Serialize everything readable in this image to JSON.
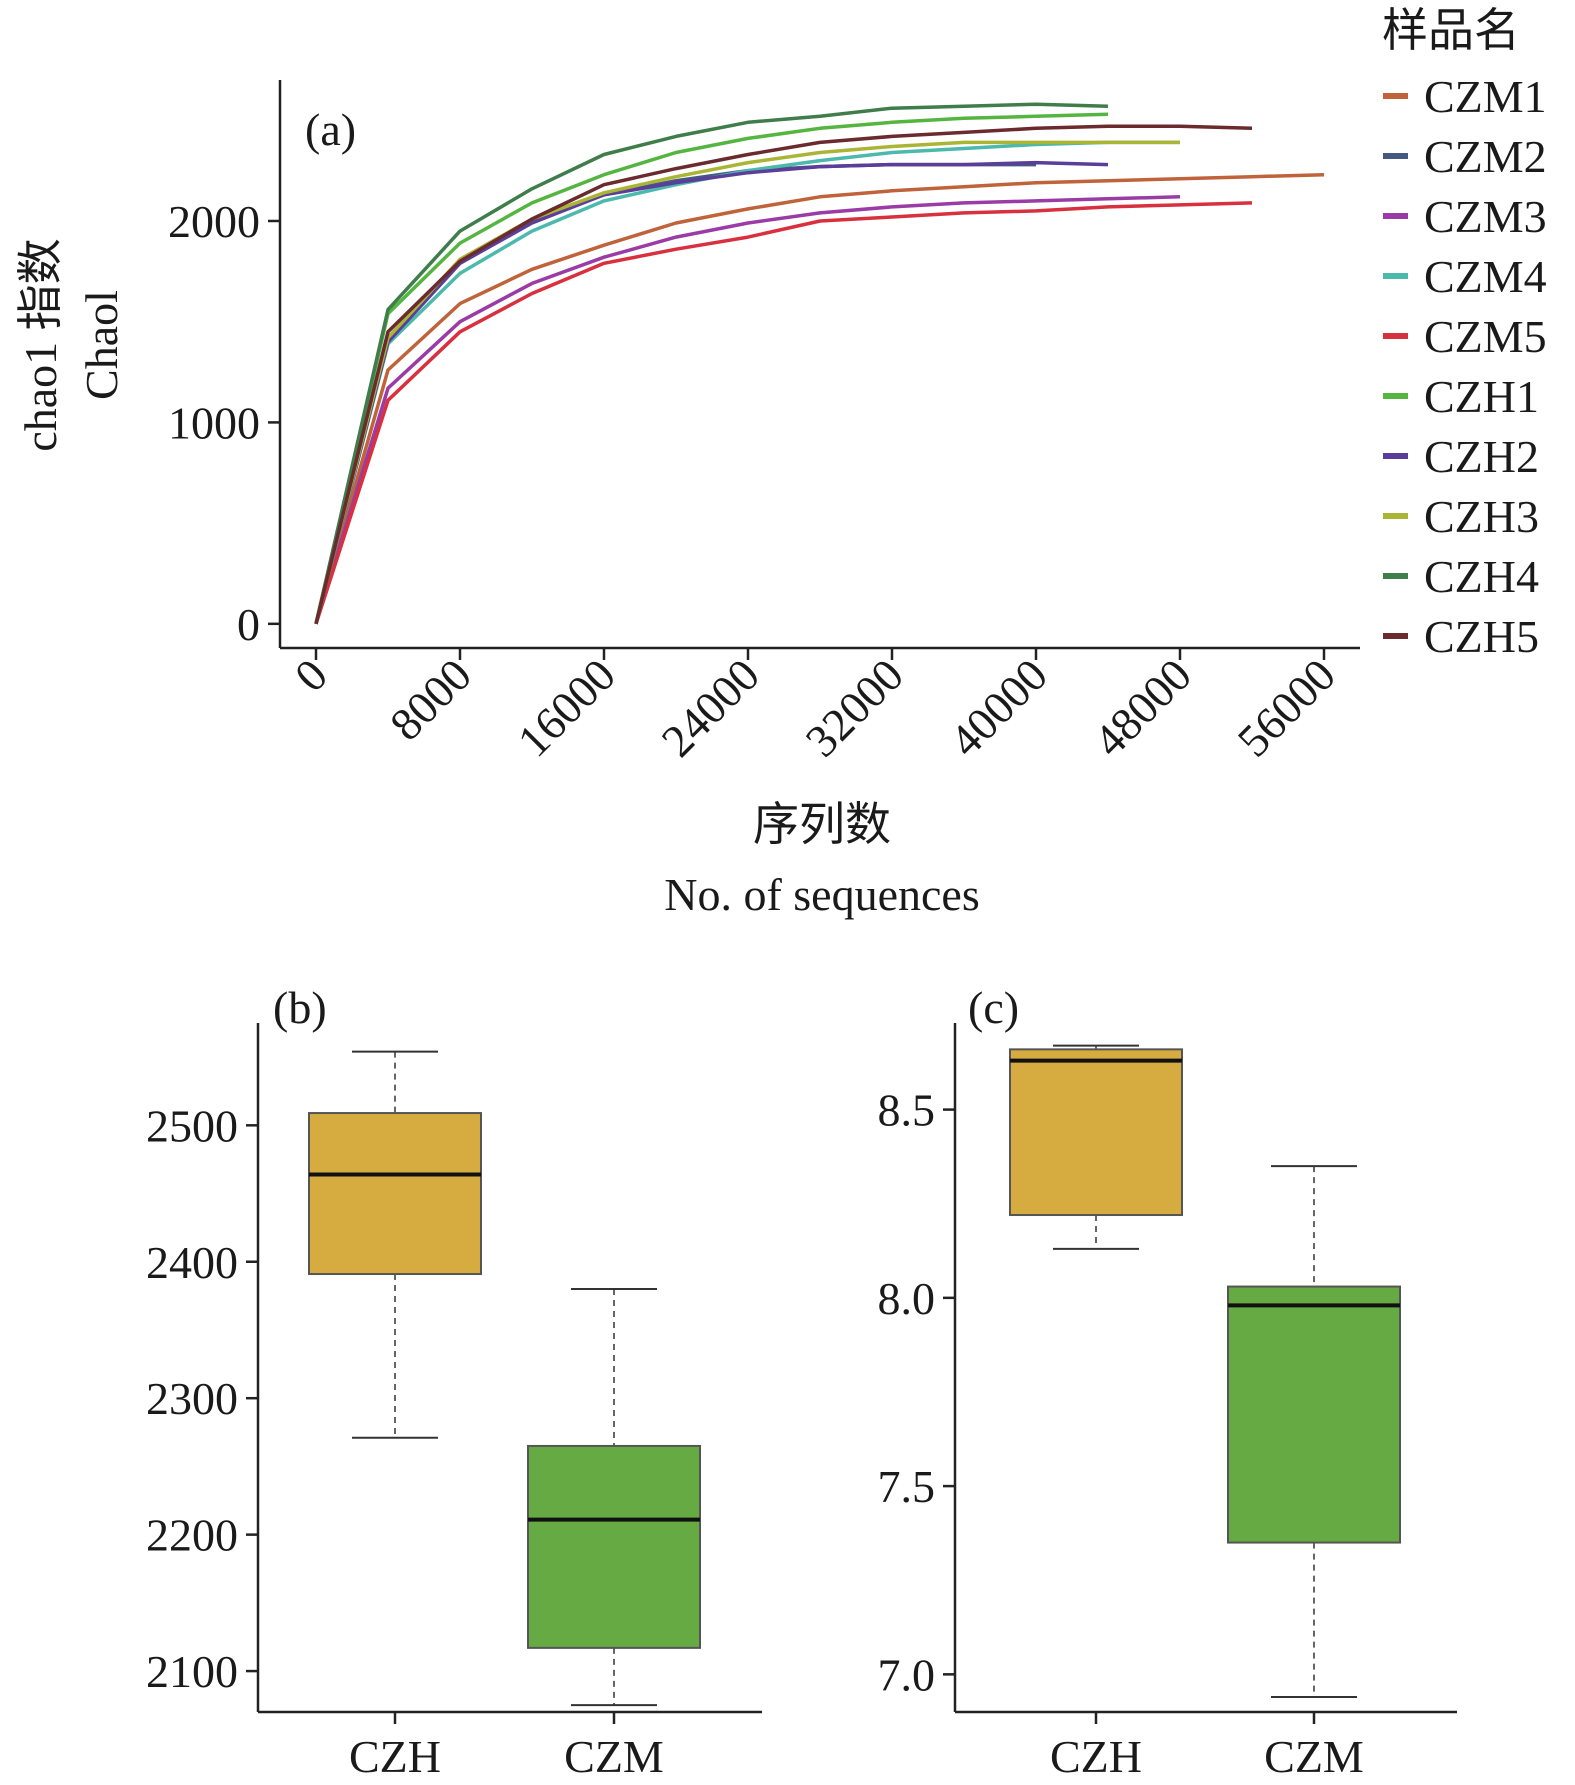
{
  "chart_data": [
    {
      "id": "a",
      "type": "line",
      "panel_label": "(a)",
      "xlabel_cn": "序列数",
      "xlabel_en": "No. of sequences",
      "ylabel_cn": "chao1 指数",
      "ylabel_en": "Chaol",
      "xticks": [
        "0",
        "8000",
        "16000",
        "24000",
        "32000",
        "40000",
        "48000",
        "56000"
      ],
      "xlim": [
        -2000,
        58000
      ],
      "yticks": [
        "0",
        "1000",
        "2000"
      ],
      "ylim": [
        -120,
        2700
      ],
      "legend_title": "样品名",
      "legend_position": "right",
      "series": [
        {
          "name": "CZM1",
          "color": "#c0623a",
          "x": [
            0,
            4000,
            8000,
            12000,
            16000,
            20000,
            24000,
            28000,
            32000,
            36000,
            40000,
            44000,
            48000,
            52000,
            56000
          ],
          "y": [
            0,
            1260,
            1590,
            1760,
            1880,
            1990,
            2060,
            2120,
            2150,
            2170,
            2190,
            2200,
            2210,
            2220,
            2230
          ]
        },
        {
          "name": "CZM2",
          "color": "#44597f",
          "x": [
            0,
            4000,
            8000,
            12000,
            16000,
            20000,
            24000,
            28000,
            32000,
            36000,
            40000
          ],
          "y": [
            0,
            1420,
            1800,
            2000,
            2130,
            2200,
            2250,
            2270,
            2280,
            2280,
            2280
          ]
        },
        {
          "name": "CZM3",
          "color": "#9b3ba6",
          "x": [
            0,
            4000,
            8000,
            12000,
            16000,
            20000,
            24000,
            28000,
            32000,
            36000,
            40000,
            44000,
            48000
          ],
          "y": [
            0,
            1170,
            1500,
            1690,
            1820,
            1920,
            1990,
            2040,
            2070,
            2090,
            2100,
            2110,
            2120
          ]
        },
        {
          "name": "CZM4",
          "color": "#4cb9ad",
          "x": [
            0,
            4000,
            8000,
            12000,
            16000,
            20000,
            24000,
            28000,
            32000,
            36000,
            40000,
            44000,
            48000
          ],
          "y": [
            0,
            1390,
            1740,
            1950,
            2100,
            2180,
            2250,
            2300,
            2340,
            2360,
            2380,
            2390,
            2390
          ]
        },
        {
          "name": "CZM5",
          "color": "#d8303e",
          "x": [
            0,
            4000,
            8000,
            12000,
            16000,
            20000,
            24000,
            28000,
            32000,
            36000,
            40000,
            44000,
            48000,
            52000
          ],
          "y": [
            0,
            1110,
            1450,
            1640,
            1790,
            1860,
            1920,
            2000,
            2020,
            2040,
            2050,
            2070,
            2080,
            2090
          ]
        },
        {
          "name": "CZH1",
          "color": "#55b541",
          "x": [
            0,
            4000,
            8000,
            12000,
            16000,
            20000,
            24000,
            28000,
            32000,
            36000,
            40000,
            44000
          ],
          "y": [
            0,
            1540,
            1890,
            2090,
            2230,
            2340,
            2410,
            2460,
            2490,
            2510,
            2520,
            2530
          ]
        },
        {
          "name": "CZH2",
          "color": "#5b3d9a",
          "x": [
            0,
            4000,
            8000,
            12000,
            16000,
            20000,
            24000,
            28000,
            32000,
            36000,
            40000,
            44000
          ],
          "y": [
            0,
            1400,
            1790,
            1990,
            2130,
            2190,
            2240,
            2270,
            2280,
            2280,
            2290,
            2280
          ]
        },
        {
          "name": "CZH3",
          "color": "#aab536",
          "x": [
            0,
            4000,
            8000,
            12000,
            16000,
            20000,
            24000,
            28000,
            32000,
            36000,
            40000,
            44000,
            48000
          ],
          "y": [
            0,
            1420,
            1810,
            2010,
            2140,
            2220,
            2290,
            2340,
            2370,
            2390,
            2390,
            2390,
            2390
          ]
        },
        {
          "name": "CZH4",
          "color": "#3f7d4b",
          "x": [
            0,
            4000,
            8000,
            12000,
            16000,
            20000,
            24000,
            28000,
            32000,
            36000,
            40000,
            44000
          ],
          "y": [
            0,
            1560,
            1950,
            2160,
            2330,
            2420,
            2490,
            2520,
            2560,
            2570,
            2580,
            2570
          ]
        },
        {
          "name": "CZH5",
          "color": "#6a2a2e",
          "x": [
            0,
            4000,
            8000,
            12000,
            16000,
            20000,
            24000,
            28000,
            32000,
            36000,
            40000,
            44000,
            48000,
            52000
          ],
          "y": [
            0,
            1450,
            1800,
            2010,
            2180,
            2260,
            2330,
            2390,
            2420,
            2440,
            2460,
            2470,
            2470,
            2460
          ]
        }
      ]
    },
    {
      "id": "b",
      "type": "box",
      "panel_label": "(b)",
      "categories": [
        "CZH",
        "CZM"
      ],
      "yticks": [
        "2100",
        "2200",
        "2300",
        "2400",
        "2500"
      ],
      "ylim": [
        2070,
        2575
      ],
      "boxes": [
        {
          "name": "CZH",
          "color": "#d6ab3f",
          "whisker_low": 2271,
          "q1": 2391,
          "median": 2464,
          "q3": 2509,
          "whisker_high": 2554
        },
        {
          "name": "CZM",
          "color": "#65aa42",
          "whisker_low": 2075,
          "q1": 2117,
          "median": 2211,
          "q3": 2265,
          "whisker_high": 2380
        }
      ]
    },
    {
      "id": "c",
      "type": "box",
      "panel_label": "(c)",
      "categories": [
        "CZH",
        "CZM"
      ],
      "yticks": [
        "7.0",
        "7.5",
        "8.0",
        "8.5"
      ],
      "ylim": [
        6.9,
        8.73
      ],
      "boxes": [
        {
          "name": "CZH",
          "color": "#d6ab3f",
          "whisker_low": 8.13,
          "q1": 8.22,
          "median": 8.63,
          "q3": 8.66,
          "whisker_high": 8.67
        },
        {
          "name": "CZM",
          "color": "#65aa42",
          "whisker_low": 6.94,
          "q1": 7.35,
          "median": 7.98,
          "q3": 8.03,
          "whisker_high": 8.35
        }
      ]
    }
  ]
}
